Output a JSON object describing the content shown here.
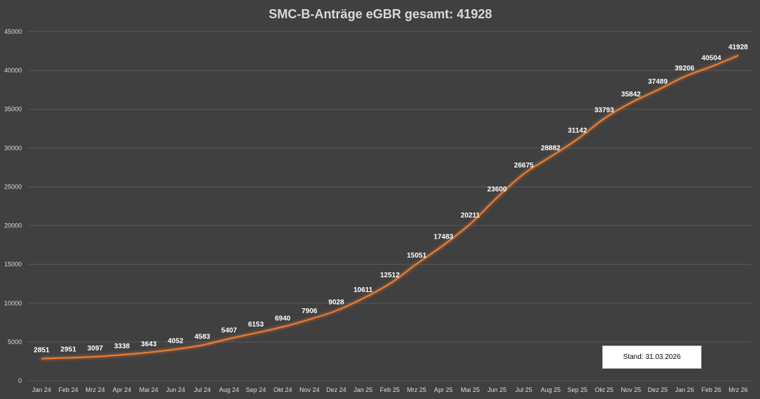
{
  "chart_data": {
    "type": "line",
    "title": "SMC-B-Anträge eGBR gesamt: 41928",
    "xlabel": "",
    "ylabel": "",
    "ylim": [
      0,
      45000
    ],
    "yticks": [
      0,
      5000,
      10000,
      15000,
      20000,
      25000,
      30000,
      35000,
      40000,
      45000
    ],
    "grid": true,
    "legend": "none",
    "categories": [
      "Jan 24",
      "Feb 24",
      "Mrz 24",
      "Apr 24",
      "Mai 24",
      "Jun 24",
      "Jul 24",
      "Aug 24",
      "Sep 24",
      "Okt 24",
      "Nov 24",
      "Dez 24",
      "Jan 25",
      "Feb 25",
      "Mrz 25",
      "Apr 25",
      "Mai 25",
      "Jun 25",
      "Jul 25",
      "Aug 25",
      "Sep 25",
      "Okt 25",
      "Nov 25",
      "Dez 25",
      "Jan 26",
      "Feb 26",
      "Mrz 26"
    ],
    "series": [
      {
        "values": [
          2851,
          2951,
          3097,
          3338,
          3643,
          4052,
          4583,
          5407,
          6153,
          6940,
          7906,
          9028,
          10611,
          12512,
          15051,
          17483,
          20211,
          23600,
          26675,
          28882,
          31142,
          33793,
          35842,
          37489,
          39206,
          40504,
          41928
        ],
        "color": "#ed7d31"
      }
    ],
    "annotations": [
      "Stand: 31.03.2026"
    ]
  },
  "colors": {
    "background": "#404040",
    "line": "#ed7d31",
    "grid": "#595959",
    "text": "#d9d9d9"
  }
}
